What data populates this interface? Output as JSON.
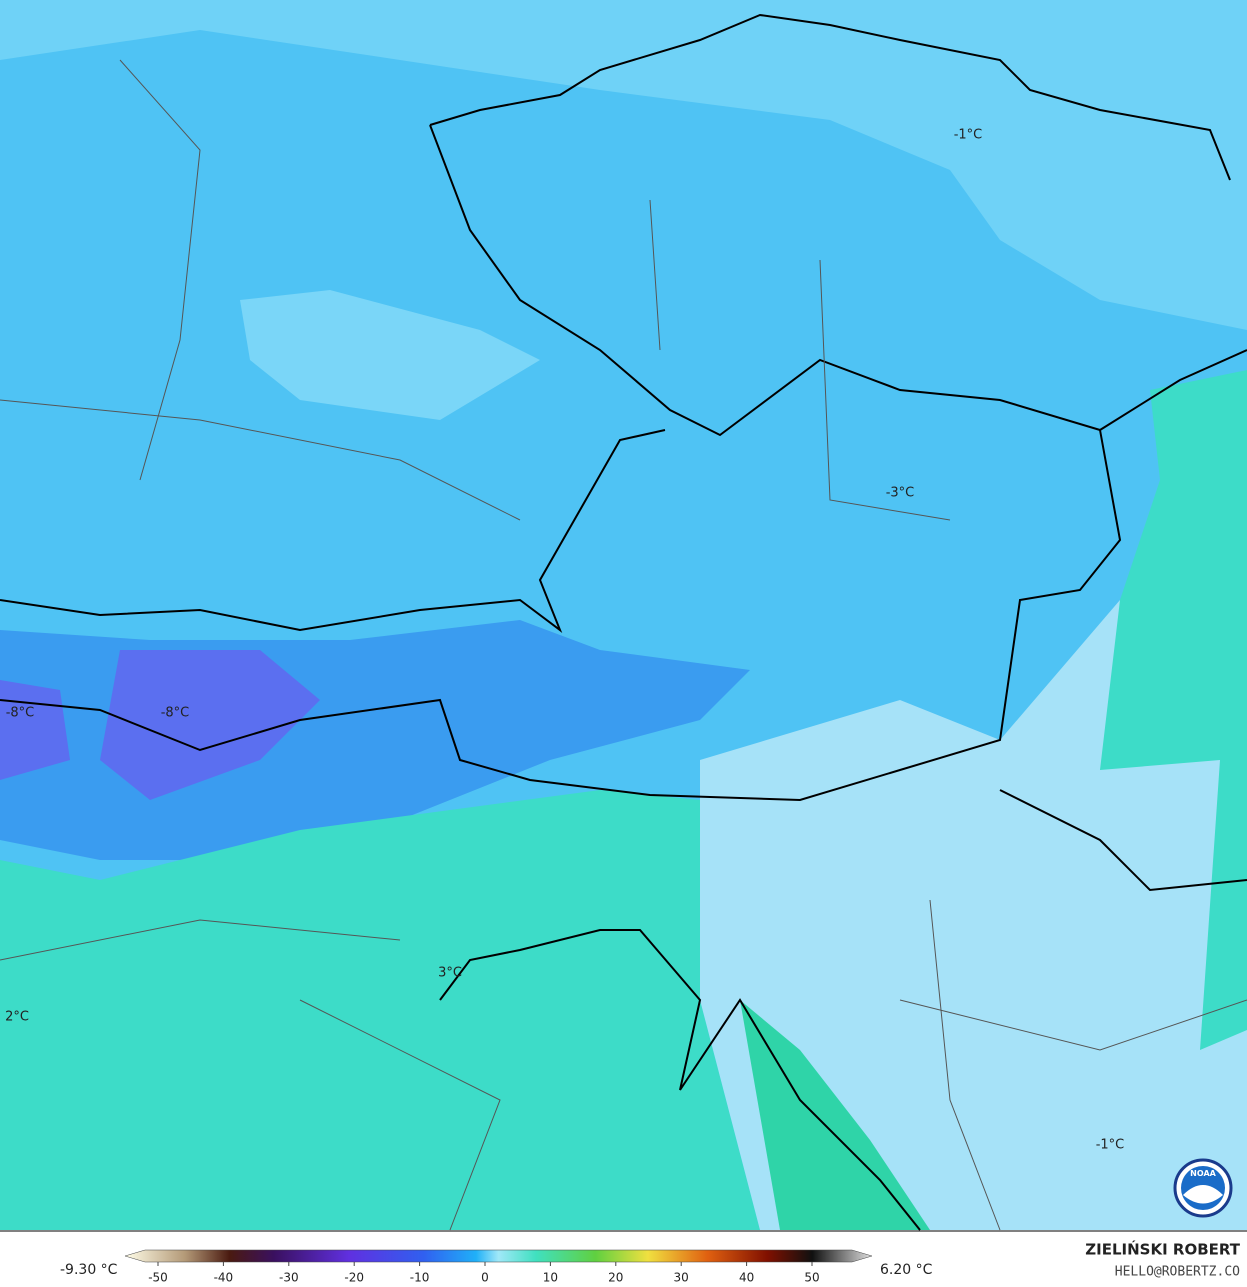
{
  "map_labels": [
    "-1°C",
    "-3°C",
    "-8°C",
    "-8°C",
    "3°C",
    "2°C",
    "-1°C"
  ],
  "legend": {
    "min_label": "-9.30 °C",
    "max_label": "6.20 °C",
    "ticks": [
      -50,
      -40,
      -30,
      -20,
      -10,
      0,
      10,
      20,
      30,
      40,
      50
    ]
  },
  "credits": {
    "author": "ZIELIŃSKI ROBERT",
    "contact": "HELLO@ROBERTZ.CO",
    "logo": "NOAA"
  }
}
